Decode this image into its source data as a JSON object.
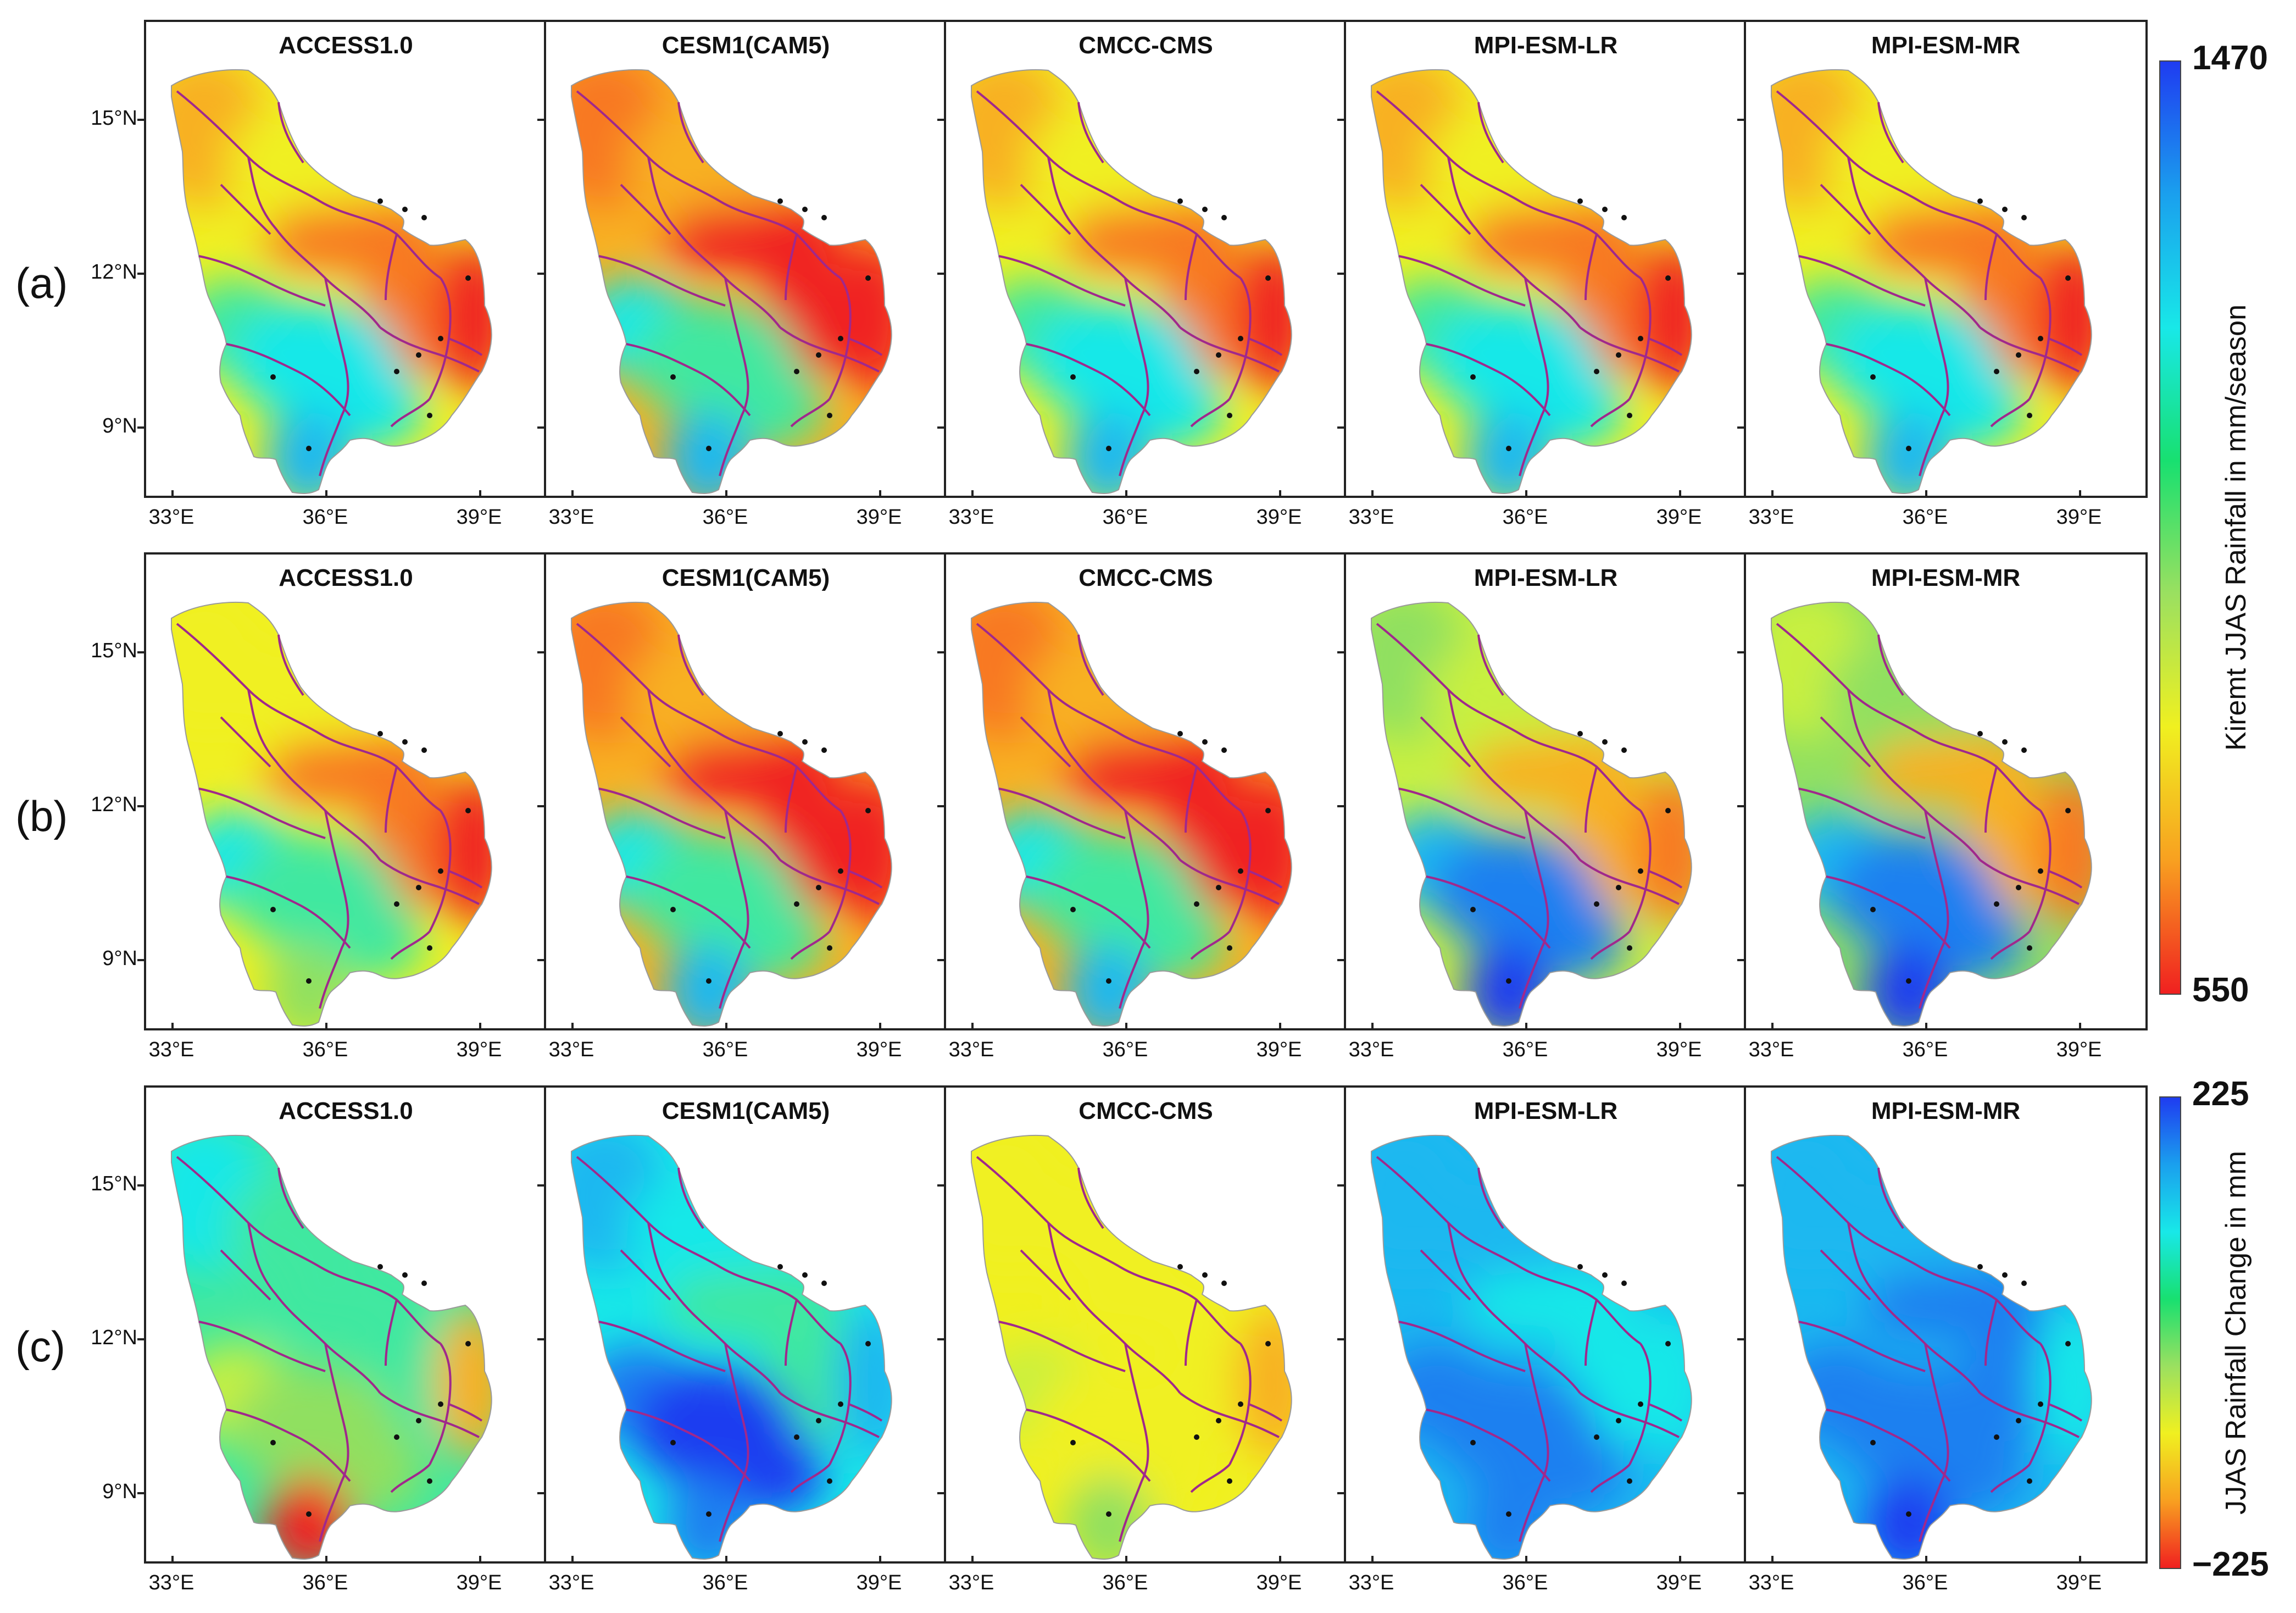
{
  "rows": [
    {
      "label": "(a)",
      "models": [
        "ACCESS1.0",
        "CESM1(CAM5)",
        "CMCC-CMS",
        "MPI-ESM-LR",
        "MPI-ESM-MR"
      ],
      "scale": "rainfall",
      "patterns": [
        "y-o-e",
        "o-r-e",
        "y-o-e",
        "y-o-e",
        "y-o-e"
      ]
    },
    {
      "label": "(b)",
      "models": [
        "ACCESS1.0",
        "CESM1(CAM5)",
        "CMCC-CMS",
        "MPI-ESM-LR",
        "MPI-ESM-MR"
      ],
      "scale": "rainfall",
      "patterns": [
        "y-o-e2",
        "o-r-e",
        "o-r-e",
        "g-b-s",
        "g-b-s2"
      ]
    },
    {
      "label": "(c)",
      "models": [
        "ACCESS1.0",
        "CESM1(CAM5)",
        "CMCC-CMS",
        "MPI-ESM-LR",
        "MPI-ESM-MR"
      ],
      "scale": "change",
      "patterns": [
        "c-acc",
        "c-cesm",
        "c-cmcc",
        "c-mpilr",
        "c-mpimr"
      ]
    }
  ],
  "axes": {
    "x_ticks": [
      "33°E",
      "36°E",
      "39°E"
    ],
    "y_ticks": [
      "15°N",
      "12°N",
      "9°N"
    ]
  },
  "colorbars": [
    {
      "title": "Kiremt JJAS Rainfall in mm/season",
      "max": "1470",
      "min": "550",
      "colors": [
        "#1f3cf0",
        "#1aa0ee",
        "#18e8e8",
        "#18e070",
        "#9be060",
        "#f0f020",
        "#f8a020",
        "#f02020"
      ]
    },
    {
      "title": "JJAS Rainfall Change in mm",
      "max": "225",
      "min": "−225",
      "colors": [
        "#1f3cf0",
        "#1aa0ee",
        "#18e8e8",
        "#18e070",
        "#9be060",
        "#f0f020",
        "#f8a020",
        "#f02020"
      ]
    }
  ],
  "colors": {
    "river": "#a0288c",
    "station": "#111111",
    "frame": "#222222"
  }
}
